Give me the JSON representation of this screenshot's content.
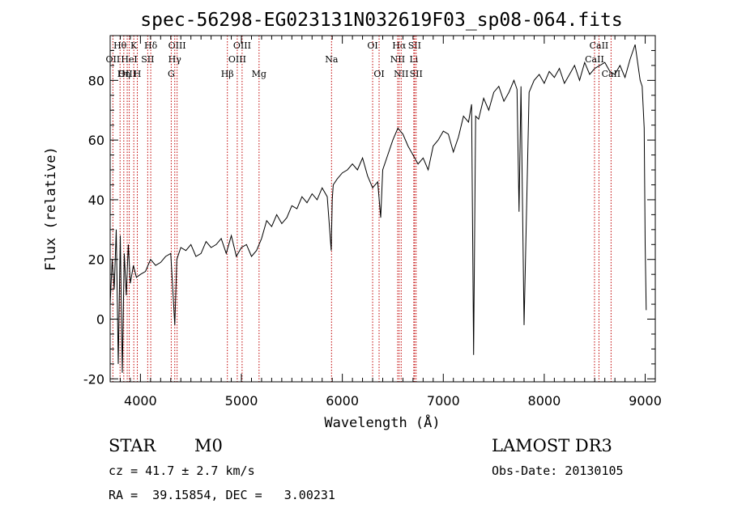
{
  "chart_data": {
    "type": "line",
    "title": "spec-56298-EG023131N032619F03_sp08-064.fits",
    "xlabel": "Wavelength (Å)",
    "ylabel": "Flux (relative)",
    "xlim": [
      3700,
      9100
    ],
    "ylim": [
      -21,
      95
    ],
    "xticks": [
      4000,
      5000,
      6000,
      7000,
      8000,
      9000
    ],
    "yticks": [
      -20,
      0,
      20,
      40,
      60,
      80
    ],
    "grid": false,
    "series": [
      {
        "x": [
          3700,
          3720,
          3740,
          3760,
          3780,
          3800,
          3820,
          3840,
          3860,
          3880,
          3900,
          3930,
          3960,
          4000,
          4050,
          4100,
          4150,
          4200,
          4250,
          4300,
          4340,
          4360,
          4400,
          4450,
          4500,
          4550,
          4600,
          4650,
          4700,
          4750,
          4800,
          4850,
          4900,
          4950,
          5000,
          5050,
          5100,
          5150,
          5200,
          5250,
          5300,
          5350,
          5400,
          5450,
          5500,
          5550,
          5600,
          5650,
          5700,
          5750,
          5800,
          5850,
          5890,
          5900,
          5910,
          5950,
          6000,
          6050,
          6100,
          6150,
          6200,
          6250,
          6300,
          6350,
          6380,
          6400,
          6450,
          6500,
          6550,
          6600,
          6650,
          6700,
          6750,
          6800,
          6850,
          6900,
          6950,
          7000,
          7050,
          7100,
          7150,
          7200,
          7250,
          7280,
          7300,
          7320,
          7350,
          7400,
          7450,
          7500,
          7550,
          7600,
          7650,
          7700,
          7730,
          7750,
          7770,
          7800,
          7850,
          7900,
          7950,
          8000,
          8050,
          8100,
          8150,
          8200,
          8250,
          8300,
          8350,
          8400,
          8450,
          8500,
          8550,
          8600,
          8650,
          8700,
          8750,
          8800,
          8850,
          8900,
          8950,
          8970,
          8990,
          9000,
          9010
        ],
        "y": [
          5,
          20,
          10,
          30,
          -15,
          28,
          -18,
          22,
          8,
          25,
          12,
          18,
          14,
          15,
          16,
          20,
          18,
          19,
          21,
          22,
          -2,
          20,
          24,
          23,
          25,
          21,
          22,
          26,
          24,
          25,
          27,
          22,
          28,
          21,
          24,
          25,
          21,
          23,
          27,
          33,
          31,
          35,
          32,
          34,
          38,
          37,
          41,
          39,
          42,
          40,
          44,
          41,
          23,
          40,
          45,
          47,
          49,
          50,
          52,
          50,
          54,
          48,
          44,
          46,
          34,
          50,
          55,
          60,
          64,
          62,
          58,
          55,
          52,
          54,
          50,
          58,
          60,
          63,
          62,
          56,
          61,
          68,
          66,
          72,
          -12,
          68,
          67,
          74,
          70,
          76,
          78,
          73,
          76,
          80,
          77,
          36,
          78,
          -2,
          76,
          80,
          82,
          79,
          83,
          81,
          84,
          79,
          82,
          85,
          80,
          86,
          82,
          84,
          85,
          86,
          83,
          82,
          85,
          81,
          87,
          92,
          80,
          78,
          64,
          25,
          3
        ]
      }
    ],
    "line_markers": [
      {
        "label": "Hθ",
        "x": 3798,
        "row": 1
      },
      {
        "label": "OII",
        "x": 3727,
        "row": 2
      },
      {
        "label": "OIII",
        "x": 3869,
        "row": 3
      },
      {
        "label": "K",
        "x": 3934,
        "row": 1
      },
      {
        "label": "HeI",
        "x": 3889,
        "row": 2
      },
      {
        "label": "Hη",
        "x": 3835,
        "row": 3
      },
      {
        "label": "SII",
        "x": 4072,
        "row": 2
      },
      {
        "label": "H",
        "x": 3969,
        "row": 3
      },
      {
        "label": "Hδ",
        "x": 4102,
        "row": 1
      },
      {
        "label": "OIII",
        "x": 4363,
        "row": 1
      },
      {
        "label": "Hγ",
        "x": 4340,
        "row": 2
      },
      {
        "label": "G",
        "x": 4305,
        "row": 3
      },
      {
        "label": "OIII",
        "x": 5007,
        "row": 1
      },
      {
        "label": "OIII",
        "x": 4959,
        "row": 2
      },
      {
        "label": "Hβ",
        "x": 4861,
        "row": 3
      },
      {
        "label": "Mg",
        "x": 5175,
        "row": 3
      },
      {
        "label": "Na",
        "x": 5893,
        "row": 2
      },
      {
        "label": "OI",
        "x": 6300,
        "row": 1
      },
      {
        "label": "OI",
        "x": 6364,
        "row": 3
      },
      {
        "label": "Hα",
        "x": 6563,
        "row": 1
      },
      {
        "label": "SII",
        "x": 6716,
        "row": 1
      },
      {
        "label": "NII",
        "x": 6548,
        "row": 2
      },
      {
        "label": "Li",
        "x": 6708,
        "row": 2
      },
      {
        "label": "NII",
        "x": 6583,
        "row": 3
      },
      {
        "label": "SII",
        "x": 6731,
        "row": 3
      },
      {
        "label": "CaII",
        "x": 8542,
        "row": 1
      },
      {
        "label": "CaII",
        "x": 8498,
        "row": 2
      },
      {
        "label": "CaII",
        "x": 8662,
        "row": 3
      }
    ]
  },
  "info": {
    "object_type": "STAR",
    "subclass": "M0",
    "survey": "LAMOST DR3",
    "cz": "cz = 41.7 ± 2.7 km/s",
    "obs_date": "Obs-Date: 20130105",
    "coords": "RA =  39.15854, DEC =   3.00231"
  }
}
